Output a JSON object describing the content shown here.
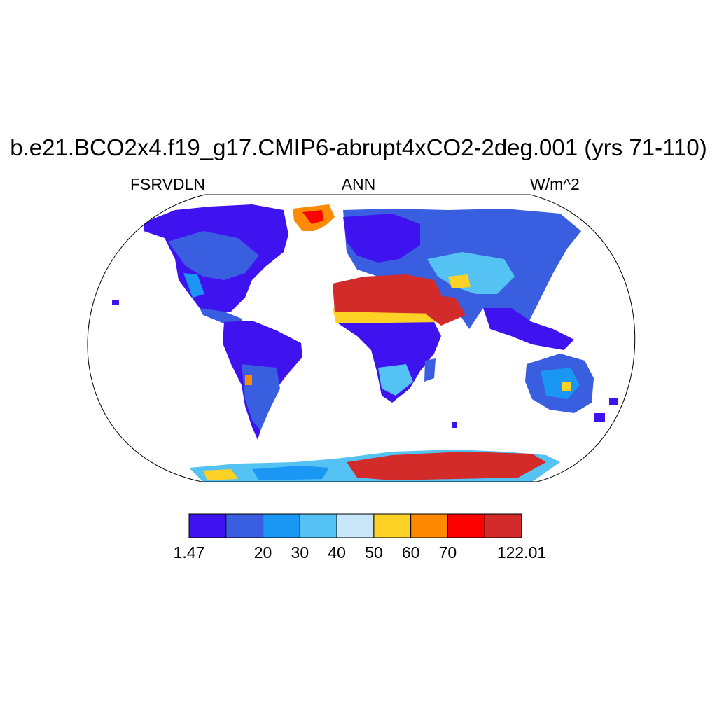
{
  "title": "b.e21.BCO2x4.f19_g17.CMIP6-abrupt4xCO2-2deg.001 (yrs 71-110)",
  "subtitle_left": "FSRVDLN",
  "subtitle_center": "ANN",
  "subtitle_right": "W/m^2",
  "colorbar": {
    "colors": [
      "#3f12f0",
      "#3a5ee0",
      "#1a96f5",
      "#54c2f2",
      "#c8e6f7",
      "#fdd126",
      "#fd8a00",
      "#fd0000",
      "#d32a2a"
    ],
    "labels": [
      "1.47",
      "20",
      "30",
      "40",
      "50",
      "60",
      "70",
      "122.01"
    ]
  }
}
